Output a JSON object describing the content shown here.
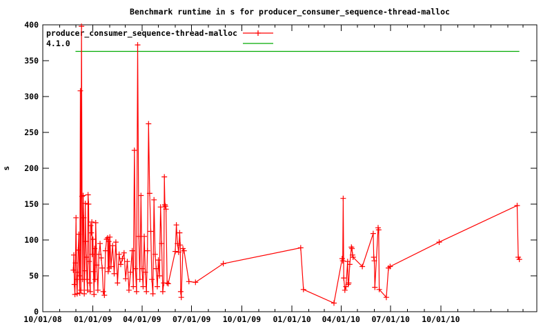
{
  "title": "Benchmark runtime in s for producer_consumer_sequence-thread-malloc",
  "ylabel": "s",
  "colors": {
    "series_main": "#ff0000",
    "series_reference": "#00aa00",
    "axis": "#000000",
    "background": "#ffffff"
  },
  "legend": {
    "position": "top-left",
    "entries": [
      {
        "label": "producer_consumer_sequence-thread-malloc",
        "color": "#ff0000",
        "marker": "plus"
      },
      {
        "label": "4.1.0",
        "color": "#00aa00",
        "marker": "none"
      }
    ]
  },
  "chart_data": {
    "type": "line",
    "title": "Benchmark runtime in s for producer_consumer_sequence-thread-malloc",
    "xlabel": "",
    "ylabel": "s",
    "ylim": [
      0,
      400
    ],
    "y_ticks": [
      0,
      50,
      100,
      150,
      200,
      250,
      300,
      350,
      400
    ],
    "x_range": [
      "2008-10-01",
      "2011-03-26"
    ],
    "grid": false,
    "legend_position": "top-left",
    "x_tick_labels": [
      {
        "date": "2008-10-01",
        "label": "10/01/08"
      },
      {
        "date": "2009-01-01",
        "label": "01/01/09"
      },
      {
        "date": "2009-04-01",
        "label": "04/01/09"
      },
      {
        "date": "2009-07-01",
        "label": "07/01/09"
      },
      {
        "date": "2009-10-01",
        "label": "10/01/09"
      },
      {
        "date": "2010-01-01",
        "label": "01/01/10"
      },
      {
        "date": "2010-04-01",
        "label": "04/01/10"
      },
      {
        "date": "2010-07-01",
        "label": "07/01/10"
      },
      {
        "date": "2010-10-01",
        "label": "10/01/10"
      }
    ],
    "series": [
      {
        "name": "producer_consumer_sequence-thread-malloc",
        "color": "#ff0000",
        "marker": "plus",
        "points": [
          [
            "2008-11-26",
            58
          ],
          [
            "2008-11-27",
            79
          ],
          [
            "2008-11-28",
            38
          ],
          [
            "2008-11-29",
            24
          ],
          [
            "2008-11-30",
            68
          ],
          [
            "2008-12-01",
            131
          ],
          [
            "2008-12-02",
            45
          ],
          [
            "2008-12-03",
            25
          ],
          [
            "2008-12-04",
            55
          ],
          [
            "2008-12-05",
            86
          ],
          [
            "2008-12-06",
            108
          ],
          [
            "2008-12-07",
            50
          ],
          [
            "2008-12-08",
            26
          ],
          [
            "2008-12-09",
            308
          ],
          [
            "2008-12-10",
            30
          ],
          [
            "2008-12-11",
            398
          ],
          [
            "2008-12-12",
            161
          ],
          [
            "2008-12-13",
            45
          ],
          [
            "2008-12-14",
            162
          ],
          [
            "2008-12-15",
            131
          ],
          [
            "2008-12-16",
            25
          ],
          [
            "2008-12-17",
            57
          ],
          [
            "2008-12-18",
            151
          ],
          [
            "2008-12-19",
            98
          ],
          [
            "2008-12-20",
            76
          ],
          [
            "2008-12-21",
            45
          ],
          [
            "2008-12-22",
            30
          ],
          [
            "2008-12-23",
            163
          ],
          [
            "2008-12-24",
            150
          ],
          [
            "2008-12-25",
            70
          ],
          [
            "2008-12-26",
            40
          ],
          [
            "2008-12-27",
            28
          ],
          [
            "2008-12-28",
            120
          ],
          [
            "2008-12-29",
            110
          ],
          [
            "2008-12-30",
            125
          ],
          [
            "2008-12-31",
            80
          ],
          [
            "2009-01-01",
            101
          ],
          [
            "2009-01-02",
            56
          ],
          [
            "2009-01-03",
            24
          ],
          [
            "2009-01-04",
            88
          ],
          [
            "2009-01-05",
            45
          ],
          [
            "2009-01-06",
            124
          ],
          [
            "2009-01-08",
            65
          ],
          [
            "2009-01-10",
            30
          ],
          [
            "2009-01-12",
            80
          ],
          [
            "2009-01-14",
            95
          ],
          [
            "2009-01-16",
            75
          ],
          [
            "2009-01-18",
            61
          ],
          [
            "2009-01-20",
            28
          ],
          [
            "2009-01-22",
            23
          ],
          [
            "2009-01-24",
            85
          ],
          [
            "2009-01-26",
            101
          ],
          [
            "2009-01-28",
            103
          ],
          [
            "2009-01-29",
            56
          ],
          [
            "2009-01-30",
            98
          ],
          [
            "2009-01-31",
            61
          ],
          [
            "2009-02-01",
            104
          ],
          [
            "2009-02-03",
            63
          ],
          [
            "2009-02-06",
            92
          ],
          [
            "2009-02-09",
            53
          ],
          [
            "2009-02-12",
            97
          ],
          [
            "2009-02-15",
            40
          ],
          [
            "2009-02-18",
            80
          ],
          [
            "2009-02-21",
            66
          ],
          [
            "2009-02-24",
            74
          ],
          [
            "2009-02-27",
            82
          ],
          [
            "2009-03-02",
            46
          ],
          [
            "2009-03-05",
            70
          ],
          [
            "2009-03-08",
            30
          ],
          [
            "2009-03-11",
            55
          ],
          [
            "2009-03-14",
            85
          ],
          [
            "2009-03-16",
            35
          ],
          [
            "2009-03-18",
            225
          ],
          [
            "2009-03-20",
            60
          ],
          [
            "2009-03-22",
            28
          ],
          [
            "2009-03-24",
            372
          ],
          [
            "2009-03-26",
            105
          ],
          [
            "2009-03-28",
            45
          ],
          [
            "2009-03-30",
            162
          ],
          [
            "2009-04-01",
            60
          ],
          [
            "2009-04-03",
            35
          ],
          [
            "2009-04-05",
            105
          ],
          [
            "2009-04-07",
            55
          ],
          [
            "2009-04-09",
            28
          ],
          [
            "2009-04-11",
            85
          ],
          [
            "2009-04-13",
            262
          ],
          [
            "2009-04-15",
            165
          ],
          [
            "2009-04-17",
            112
          ],
          [
            "2009-04-19",
            45
          ],
          [
            "2009-04-21",
            25
          ],
          [
            "2009-04-23",
            156
          ],
          [
            "2009-04-25",
            80
          ],
          [
            "2009-04-27",
            60
          ],
          [
            "2009-04-29",
            35
          ],
          [
            "2009-05-01",
            72
          ],
          [
            "2009-05-03",
            50
          ],
          [
            "2009-05-05",
            146
          ],
          [
            "2009-05-07",
            95
          ],
          [
            "2009-05-09",
            28
          ],
          [
            "2009-05-11",
            40
          ],
          [
            "2009-05-12",
            188
          ],
          [
            "2009-05-13",
            149
          ],
          [
            "2009-05-14",
            147
          ],
          [
            "2009-05-15",
            143
          ],
          [
            "2009-05-17",
            40
          ],
          [
            "2009-05-19",
            39
          ],
          [
            "2009-06-01",
            84
          ],
          [
            "2009-06-03",
            121
          ],
          [
            "2009-06-05",
            95
          ],
          [
            "2009-06-07",
            83
          ],
          [
            "2009-06-09",
            110
          ],
          [
            "2009-06-10",
            93
          ],
          [
            "2009-06-11",
            28
          ],
          [
            "2009-06-12",
            20
          ],
          [
            "2009-06-15",
            88
          ],
          [
            "2009-06-17",
            85
          ],
          [
            "2009-06-26",
            42
          ],
          [
            "2009-07-08",
            41
          ],
          [
            "2009-08-28",
            67
          ],
          [
            "2010-01-17",
            89
          ],
          [
            "2010-01-22",
            31
          ],
          [
            "2010-03-19",
            12
          ],
          [
            "2010-04-03",
            74
          ],
          [
            "2010-04-04",
            71
          ],
          [
            "2010-04-05",
            158
          ],
          [
            "2010-04-06",
            47
          ],
          [
            "2010-04-08",
            30
          ],
          [
            "2010-04-10",
            35
          ],
          [
            "2010-04-13",
            70
          ],
          [
            "2010-04-14",
            38
          ],
          [
            "2010-04-15",
            40
          ],
          [
            "2010-04-17",
            66
          ],
          [
            "2010-04-20",
            90
          ],
          [
            "2010-04-21",
            88
          ],
          [
            "2010-04-22",
            79
          ],
          [
            "2010-04-23",
            76
          ],
          [
            "2010-05-10",
            63
          ],
          [
            "2010-05-30",
            109
          ],
          [
            "2010-05-31",
            76
          ],
          [
            "2010-06-01",
            71
          ],
          [
            "2010-06-02",
            34
          ],
          [
            "2010-06-08",
            117
          ],
          [
            "2010-06-09",
            114
          ],
          [
            "2010-06-10",
            31
          ],
          [
            "2010-06-23",
            20
          ],
          [
            "2010-06-27",
            61
          ],
          [
            "2010-06-30",
            63
          ],
          [
            "2010-09-28",
            97
          ],
          [
            "2011-02-18",
            148
          ],
          [
            "2011-02-20",
            76
          ],
          [
            "2011-02-22",
            73
          ]
        ]
      },
      {
        "name": "4.1.0",
        "color": "#00aa00",
        "marker": "none",
        "points": [
          [
            "2008-11-30",
            363
          ],
          [
            "2011-02-22",
            363
          ]
        ]
      }
    ]
  }
}
